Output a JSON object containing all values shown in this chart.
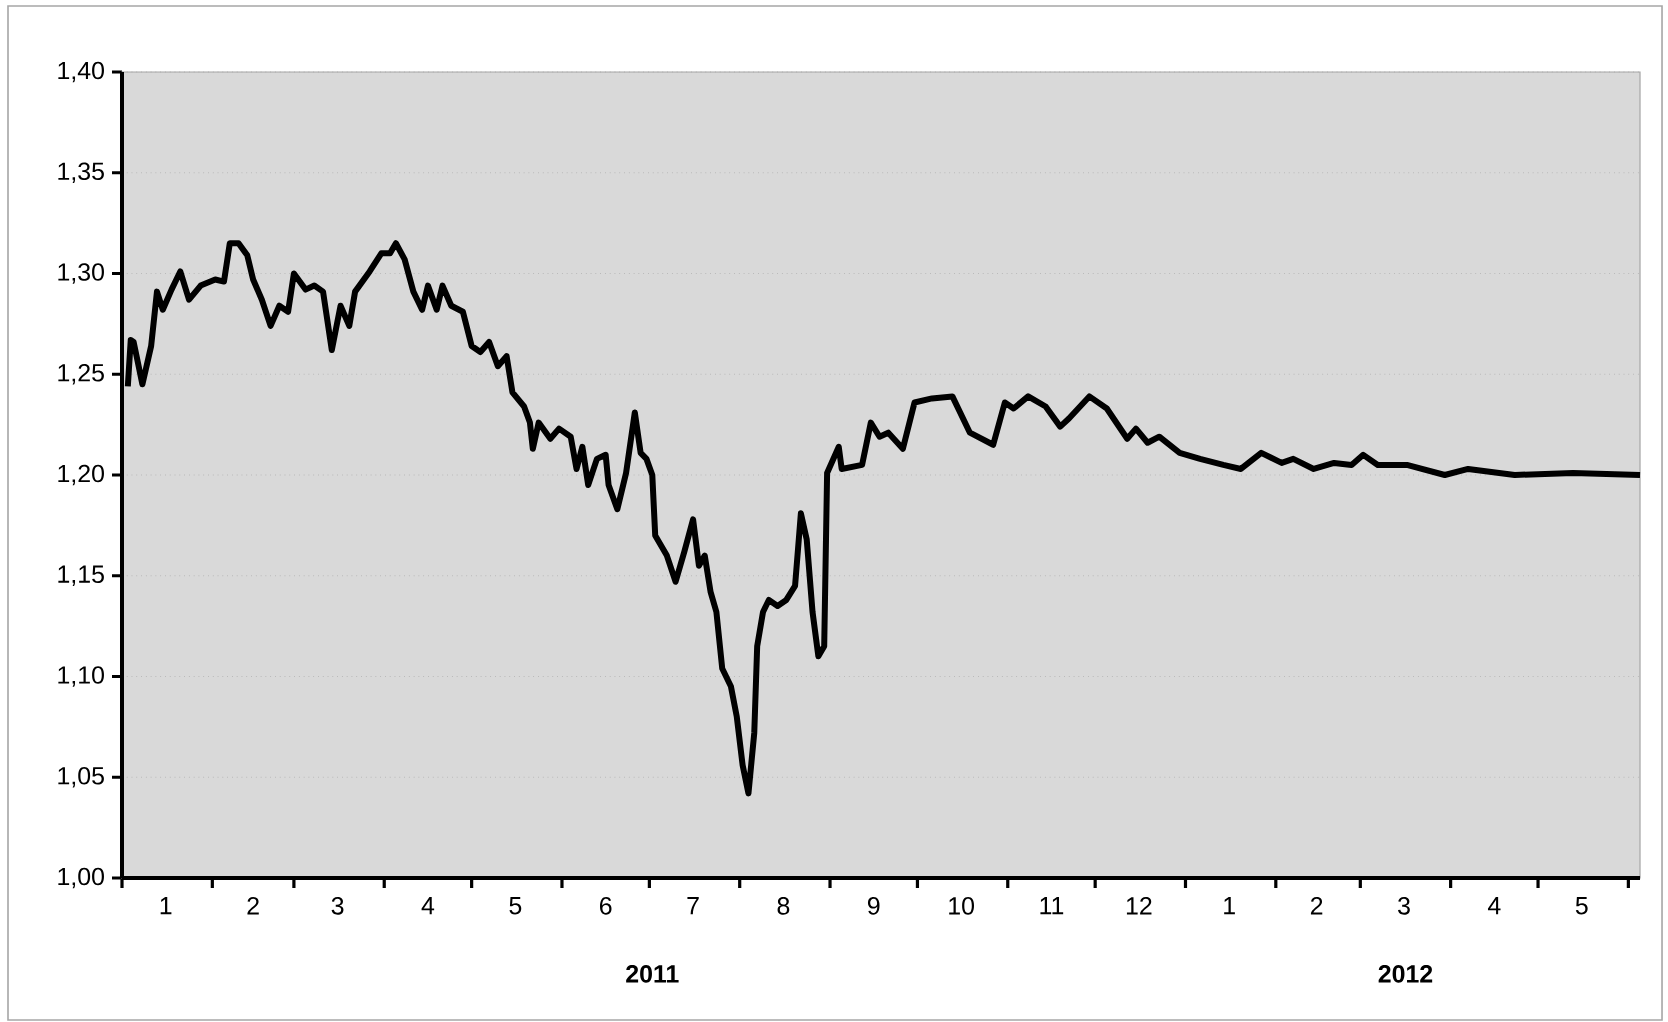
{
  "chart_data": {
    "type": "line",
    "color": "#000000",
    "grid": "y",
    "x": [
      "2011-01-03",
      "2011-01-04",
      "2011-01-05",
      "2011-01-08",
      "2011-01-11",
      "2011-01-13",
      "2011-01-15",
      "2011-01-18",
      "2011-01-21",
      "2011-01-24",
      "2011-01-28",
      "2011-02-02",
      "2011-02-05",
      "2011-02-07",
      "2011-02-10",
      "2011-02-13",
      "2011-02-15",
      "2011-02-18",
      "2011-02-21",
      "2011-02-24",
      "2011-02-27",
      "2011-03-01",
      "2011-03-05",
      "2011-03-08",
      "2011-03-11",
      "2011-03-14",
      "2011-03-17",
      "2011-03-20",
      "2011-03-22",
      "2011-03-27",
      "2011-03-31",
      "2011-04-03",
      "2011-04-05",
      "2011-04-08",
      "2011-04-11",
      "2011-04-14",
      "2011-04-16",
      "2011-04-19",
      "2011-04-21",
      "2011-04-24",
      "2011-04-28",
      "2011-05-01",
      "2011-05-04",
      "2011-05-07",
      "2011-05-10",
      "2011-05-13",
      "2011-05-15",
      "2011-05-19",
      "2011-05-21",
      "2011-05-22",
      "2011-05-24",
      "2011-05-28",
      "2011-05-31",
      "2011-06-04",
      "2011-06-06",
      "2011-06-08",
      "2011-06-10",
      "2011-06-13",
      "2011-06-16",
      "2011-06-17",
      "2011-06-20",
      "2011-06-23",
      "2011-06-26",
      "2011-06-28",
      "2011-06-30",
      "2011-07-02",
      "2011-07-03",
      "2011-07-07",
      "2011-07-10",
      "2011-07-13",
      "2011-07-16",
      "2011-07-18",
      "2011-07-20",
      "2011-07-22",
      "2011-07-24",
      "2011-07-26",
      "2011-07-29",
      "2011-07-31",
      "2011-08-02",
      "2011-08-04",
      "2011-08-06",
      "2011-08-07",
      "2011-08-09",
      "2011-08-11",
      "2011-08-14",
      "2011-08-17",
      "2011-08-20",
      "2011-08-22",
      "2011-08-24",
      "2011-08-26",
      "2011-08-28",
      "2011-08-30",
      "2011-08-31",
      "2011-09-04",
      "2011-09-05",
      "2011-09-12",
      "2011-09-15",
      "2011-09-18",
      "2011-09-21",
      "2011-09-26",
      "2011-09-30",
      "2011-10-06",
      "2011-10-13",
      "2011-10-19",
      "2011-10-27",
      "2011-10-31",
      "2011-11-03",
      "2011-11-08",
      "2011-11-14",
      "2011-11-19",
      "2011-11-22",
      "2011-11-29",
      "2011-12-05",
      "2011-12-12",
      "2011-12-15",
      "2011-12-19",
      "2011-12-23",
      "2011-12-30",
      "2012-01-06",
      "2012-01-14",
      "2012-01-20",
      "2012-01-27",
      "2012-02-03",
      "2012-02-07",
      "2012-02-14",
      "2012-02-21",
      "2012-02-27",
      "2012-03-02",
      "2012-03-07",
      "2012-03-17",
      "2012-03-30",
      "2012-04-07",
      "2012-04-23",
      "2012-05-13",
      "2012-06-05"
    ],
    "values": [
      1.244,
      1.267,
      1.266,
      1.245,
      1.264,
      1.291,
      1.282,
      1.292,
      1.301,
      1.287,
      1.294,
      1.297,
      1.296,
      1.315,
      1.315,
      1.309,
      1.297,
      1.287,
      1.274,
      1.284,
      1.281,
      1.3,
      1.292,
      1.294,
      1.291,
      1.262,
      1.284,
      1.274,
      1.291,
      1.301,
      1.31,
      1.31,
      1.315,
      1.307,
      1.291,
      1.282,
      1.294,
      1.282,
      1.294,
      1.284,
      1.281,
      1.264,
      1.261,
      1.266,
      1.254,
      1.259,
      1.241,
      1.234,
      1.226,
      1.213,
      1.226,
      1.218,
      1.223,
      1.219,
      1.203,
      1.214,
      1.195,
      1.208,
      1.21,
      1.195,
      1.183,
      1.201,
      1.231,
      1.211,
      1.208,
      1.2,
      1.17,
      1.16,
      1.147,
      1.162,
      1.178,
      1.155,
      1.16,
      1.142,
      1.132,
      1.104,
      1.095,
      1.08,
      1.056,
      1.042,
      1.072,
      1.115,
      1.132,
      1.138,
      1.135,
      1.138,
      1.145,
      1.181,
      1.168,
      1.132,
      1.11,
      1.115,
      1.201,
      1.214,
      1.203,
      1.205,
      1.226,
      1.219,
      1.221,
      1.213,
      1.236,
      1.238,
      1.239,
      1.221,
      1.215,
      1.236,
      1.233,
      1.239,
      1.234,
      1.224,
      1.228,
      1.239,
      1.233,
      1.218,
      1.223,
      1.216,
      1.219,
      1.211,
      1.208,
      1.205,
      1.203,
      1.211,
      1.206,
      1.208,
      1.203,
      1.206,
      1.205,
      1.21,
      1.205,
      1.205,
      1.2,
      1.203,
      1.2,
      1.201,
      1.2
    ],
    "xlim": [
      "2011-01-01",
      "2012-06-05"
    ],
    "xticks": [
      {
        "value": "2011-01-01",
        "label": null
      },
      {
        "value": "2011-02-01",
        "label": null
      },
      {
        "value": "2011-03-01",
        "label": null
      },
      {
        "value": "2011-04-01",
        "label": null
      },
      {
        "value": "2011-05-01",
        "label": null
      },
      {
        "value": "2011-06-01",
        "label": null
      },
      {
        "value": "2011-07-01",
        "label": null
      },
      {
        "value": "2011-08-01",
        "label": null
      },
      {
        "value": "2011-09-01",
        "label": null
      },
      {
        "value": "2011-10-01",
        "label": null
      },
      {
        "value": "2011-11-01",
        "label": null
      },
      {
        "value": "2011-12-01",
        "label": null
      },
      {
        "value": "2012-01-01",
        "label": null
      },
      {
        "value": "2012-02-01",
        "label": null
      },
      {
        "value": "2012-03-01",
        "label": null
      },
      {
        "value": "2012-04-01",
        "label": null
      },
      {
        "value": "2012-05-01",
        "label": null
      },
      {
        "value": "2012-06-01",
        "label": null
      },
      {
        "value": "2011-01-16",
        "label": "1"
      },
      {
        "value": "2011-02-15",
        "label": "2"
      },
      {
        "value": "2011-03-16",
        "label": "3"
      },
      {
        "value": "2011-04-16",
        "label": "4"
      },
      {
        "value": "2011-05-16",
        "label": "5"
      },
      {
        "value": "2011-06-16",
        "label": "6"
      },
      {
        "value": "2011-07-16",
        "label": "7"
      },
      {
        "value": "2011-08-16",
        "label": "8"
      },
      {
        "value": "2011-09-16",
        "label": "9"
      },
      {
        "value": "2011-10-16",
        "label": "10"
      },
      {
        "value": "2011-11-16",
        "label": "11"
      },
      {
        "value": "2011-12-16",
        "label": "12"
      },
      {
        "value": "2012-01-16",
        "label": "1"
      },
      {
        "value": "2012-02-15",
        "label": "2"
      },
      {
        "value": "2012-03-16",
        "label": "3"
      },
      {
        "value": "2012-04-16",
        "label": "4"
      },
      {
        "value": "2012-05-16",
        "label": "5"
      }
    ],
    "ylim": [
      1.0,
      1.4
    ],
    "yticks": [
      {
        "value": 1.0,
        "label": "1,00"
      },
      {
        "value": 1.05,
        "label": "1,05"
      },
      {
        "value": 1.1,
        "label": "1,10"
      },
      {
        "value": 1.15,
        "label": "1,15"
      },
      {
        "value": 1.2,
        "label": "1,20"
      },
      {
        "value": 1.25,
        "label": "1,25"
      },
      {
        "value": 1.3,
        "label": "1,30"
      },
      {
        "value": 1.35,
        "label": "1,35"
      },
      {
        "value": 1.4,
        "label": "1,40"
      }
    ],
    "annotations": [
      "2011",
      "2012"
    ]
  }
}
